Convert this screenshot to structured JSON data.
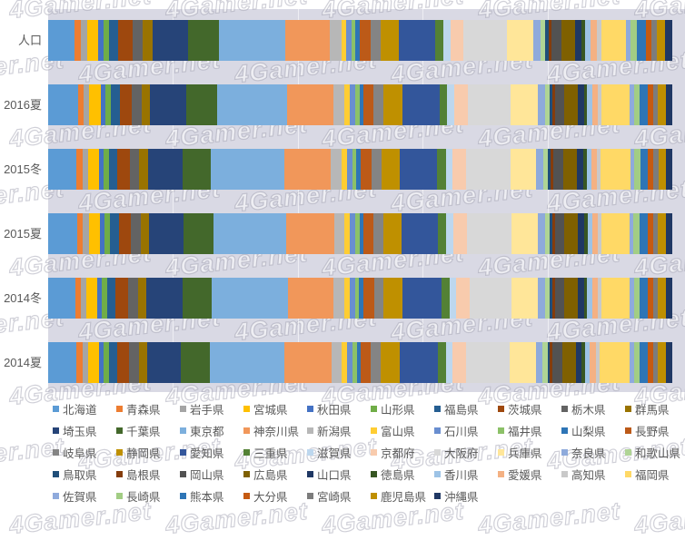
{
  "watermark": {
    "text": "4Gamer.net"
  },
  "plot": {
    "background_color": "#D9D9E4",
    "gridline_color": "rgba(255,255,255,0.55)",
    "gridline_step_percent": 20
  },
  "chart_data": {
    "type": "bar",
    "variant": "stacked-100-horizontal",
    "title": "",
    "xlabel": "",
    "ylabel": "",
    "axis_range_percent": [
      0,
      100
    ],
    "legend_position": "bottom",
    "categories": [
      "人口",
      "2016夏",
      "2015冬",
      "2015夏",
      "2014冬",
      "2014夏"
    ],
    "series": [
      {
        "name": "北海道",
        "color": "#5B9BD5",
        "values": [
          4.2,
          4.4,
          4.2,
          4.3,
          4.0,
          4.2
        ]
      },
      {
        "name": "青森県",
        "color": "#ED7D31",
        "values": [
          1.0,
          0.9,
          0.9,
          0.8,
          0.9,
          0.9
        ]
      },
      {
        "name": "岩手県",
        "color": "#A5A5A5",
        "values": [
          1.0,
          0.8,
          0.9,
          0.9,
          0.8,
          0.8
        ]
      },
      {
        "name": "宮城県",
        "color": "#FFC000",
        "values": [
          1.8,
          1.7,
          1.6,
          1.7,
          1.6,
          1.6
        ]
      },
      {
        "name": "秋田県",
        "color": "#4472C4",
        "values": [
          0.8,
          0.7,
          0.7,
          0.7,
          0.7,
          0.7
        ]
      },
      {
        "name": "山形県",
        "color": "#70AD47",
        "values": [
          0.9,
          0.8,
          0.8,
          0.8,
          0.8,
          0.8
        ]
      },
      {
        "name": "福島県",
        "color": "#255E91",
        "values": [
          1.5,
          1.3,
          1.2,
          1.3,
          1.2,
          1.2
        ]
      },
      {
        "name": "茨城県",
        "color": "#9E480E",
        "values": [
          2.3,
          1.8,
          1.9,
          1.8,
          1.9,
          1.8
        ]
      },
      {
        "name": "栃木県",
        "color": "#636363",
        "values": [
          1.6,
          1.4,
          1.3,
          1.4,
          1.4,
          1.4
        ]
      },
      {
        "name": "群馬県",
        "color": "#997300",
        "values": [
          1.6,
          1.3,
          1.4,
          1.3,
          1.3,
          1.3
        ]
      },
      {
        "name": "埼玉県",
        "color": "#264478",
        "values": [
          5.7,
          5.3,
          5.2,
          5.1,
          5.3,
          5.0
        ]
      },
      {
        "name": "千葉県",
        "color": "#43682B",
        "values": [
          4.9,
          4.6,
          4.1,
          4.4,
          4.3,
          4.2
        ]
      },
      {
        "name": "東京都",
        "color": "#7CAFDD",
        "values": [
          10.6,
          10.4,
          11.0,
          10.8,
          11.3,
          11.1
        ]
      },
      {
        "name": "神奈川県",
        "color": "#F1975A",
        "values": [
          7.2,
          6.8,
          6.9,
          7.1,
          6.8,
          6.9
        ]
      },
      {
        "name": "新潟県",
        "color": "#B7B7B7",
        "values": [
          1.8,
          1.6,
          1.7,
          1.6,
          1.6,
          1.6
        ]
      },
      {
        "name": "富山県",
        "color": "#FFCD33",
        "values": [
          0.8,
          0.8,
          0.8,
          0.7,
          0.8,
          0.8
        ]
      },
      {
        "name": "石川県",
        "color": "#698ED0",
        "values": [
          0.9,
          0.9,
          0.8,
          0.9,
          0.8,
          0.8
        ]
      },
      {
        "name": "福井県",
        "color": "#8CC168",
        "values": [
          0.6,
          0.6,
          0.6,
          0.6,
          0.6,
          0.6
        ]
      },
      {
        "name": "山梨県",
        "color": "#2E75B6",
        "values": [
          0.7,
          0.6,
          0.6,
          0.6,
          0.6,
          0.6
        ]
      },
      {
        "name": "長野県",
        "color": "#BC5A18",
        "values": [
          1.7,
          1.5,
          1.6,
          1.5,
          1.6,
          1.5
        ]
      },
      {
        "name": "岐阜県",
        "color": "#848484",
        "values": [
          1.6,
          1.4,
          1.5,
          1.4,
          1.4,
          1.4
        ]
      },
      {
        "name": "静岡県",
        "color": "#BF9000",
        "values": [
          2.9,
          2.8,
          2.7,
          2.7,
          2.8,
          2.9
        ]
      },
      {
        "name": "愛知県",
        "color": "#33569B",
        "values": [
          5.8,
          5.5,
          5.6,
          5.4,
          5.8,
          5.6
        ]
      },
      {
        "name": "三重県",
        "color": "#538135",
        "values": [
          1.4,
          1.2,
          1.3,
          1.3,
          1.2,
          1.2
        ]
      },
      {
        "name": "滋賀県",
        "color": "#BDD7EE",
        "values": [
          1.1,
          1.0,
          1.0,
          1.0,
          1.0,
          1.0
        ]
      },
      {
        "name": "京都府",
        "color": "#F8CBAD",
        "values": [
          2.1,
          2.0,
          2.1,
          2.0,
          2.0,
          2.0
        ]
      },
      {
        "name": "大阪府",
        "color": "#D8D8D8",
        "values": [
          6.9,
          6.4,
          6.6,
          6.7,
          6.2,
          6.4
        ]
      },
      {
        "name": "兵庫県",
        "color": "#FFE699",
        "values": [
          4.3,
          4.0,
          3.8,
          3.9,
          3.9,
          3.9
        ]
      },
      {
        "name": "奈良県",
        "color": "#8EAADB",
        "values": [
          1.1,
          1.0,
          1.0,
          1.0,
          1.0,
          1.0
        ]
      },
      {
        "name": "和歌山県",
        "color": "#AFD495",
        "values": [
          0.8,
          0.7,
          0.7,
          0.7,
          0.7,
          0.7
        ]
      },
      {
        "name": "鳥取県",
        "color": "#1F4E79",
        "values": [
          0.5,
          0.4,
          0.4,
          0.4,
          0.4,
          0.4
        ]
      },
      {
        "name": "島根県",
        "color": "#843C0C",
        "values": [
          0.5,
          0.4,
          0.5,
          0.4,
          0.4,
          0.4
        ]
      },
      {
        "name": "岡山県",
        "color": "#525252",
        "values": [
          1.5,
          1.4,
          1.4,
          1.4,
          1.4,
          1.4
        ]
      },
      {
        "name": "広島県",
        "color": "#7F6000",
        "values": [
          2.2,
          2.0,
          2.1,
          2.0,
          2.0,
          2.0
        ]
      },
      {
        "name": "山口県",
        "color": "#1F3864",
        "values": [
          1.1,
          0.9,
          0.9,
          0.9,
          0.9,
          0.9
        ]
      },
      {
        "name": "徳島県",
        "color": "#375623",
        "values": [
          0.6,
          0.5,
          0.5,
          0.5,
          0.5,
          0.5
        ]
      },
      {
        "name": "香川県",
        "color": "#9DC3E6",
        "values": [
          0.8,
          0.7,
          0.7,
          0.7,
          0.7,
          0.7
        ]
      },
      {
        "name": "愛媛県",
        "color": "#F4B183",
        "values": [
          1.1,
          0.9,
          0.9,
          0.9,
          0.9,
          0.9
        ]
      },
      {
        "name": "高知県",
        "color": "#C9C9C9",
        "values": [
          0.6,
          0.5,
          0.5,
          0.5,
          0.5,
          0.5
        ]
      },
      {
        "name": "福岡県",
        "color": "#FFD966",
        "values": [
          4.0,
          4.2,
          4.4,
          4.1,
          4.2,
          4.5
        ]
      },
      {
        "name": "佐賀県",
        "color": "#8FAADC",
        "values": [
          0.7,
          0.6,
          0.6,
          0.6,
          0.6,
          0.6
        ]
      },
      {
        "name": "長崎県",
        "color": "#A2CD84",
        "values": [
          1.1,
          0.9,
          0.9,
          0.9,
          0.9,
          0.9
        ]
      },
      {
        "name": "熊本県",
        "color": "#2E75B6",
        "values": [
          1.4,
          1.2,
          1.2,
          1.3,
          1.2,
          1.2
        ]
      },
      {
        "name": "大分県",
        "color": "#C55A11",
        "values": [
          0.9,
          0.8,
          0.8,
          0.8,
          0.8,
          0.8
        ]
      },
      {
        "name": "宮崎県",
        "color": "#7C7C7C",
        "values": [
          0.9,
          0.7,
          0.7,
          0.7,
          0.7,
          0.7
        ]
      },
      {
        "name": "鹿児島県",
        "color": "#BF8F00",
        "values": [
          1.3,
          1.1,
          1.1,
          1.1,
          1.1,
          1.1
        ]
      },
      {
        "name": "沖縄県",
        "color": "#203864",
        "values": [
          1.1,
          1.0,
          1.0,
          1.0,
          1.0,
          1.0
        ]
      }
    ],
    "legend_items_per_row": 10
  },
  "layout_note": ""
}
